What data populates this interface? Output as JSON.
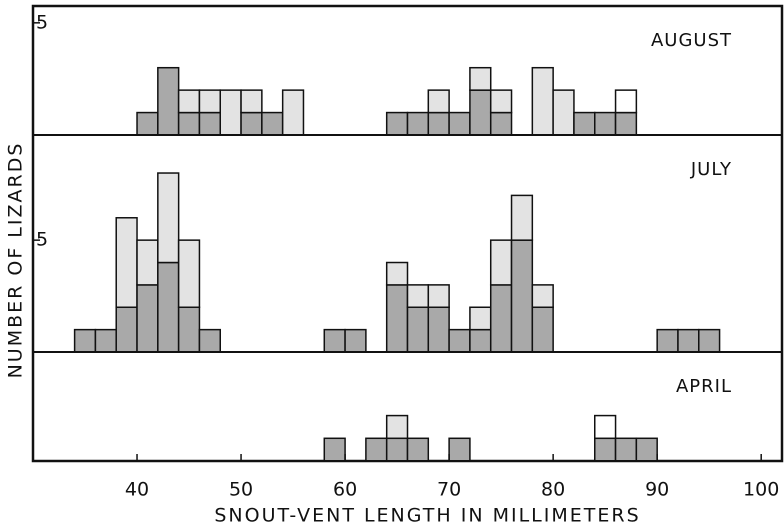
{
  "chart_data": [
    {
      "type": "histogram",
      "title": "AUGUST",
      "bins": [
        34,
        36,
        38,
        40,
        42,
        44,
        46,
        48,
        50,
        52,
        54,
        56,
        58,
        60,
        62,
        64,
        66,
        68,
        70,
        72,
        74,
        76,
        78,
        80,
        82,
        84,
        86,
        88,
        90,
        92,
        94,
        96,
        98
      ],
      "series": [
        {
          "color": "#a9a9a9",
          "values": [
            0,
            0,
            0,
            1,
            3,
            1,
            1,
            0,
            1,
            1,
            0,
            0,
            0,
            0,
            0,
            1,
            1,
            1,
            1,
            2,
            1,
            0,
            0,
            0,
            1,
            1,
            1,
            0,
            0,
            0,
            0,
            0
          ]
        },
        {
          "color": "#e3e3e3",
          "values": [
            0,
            0,
            0,
            0,
            0,
            1,
            1,
            2,
            1,
            0,
            2,
            0,
            0,
            0,
            0,
            0,
            0,
            1,
            0,
            1,
            1,
            0,
            3,
            2,
            0,
            0,
            0,
            0,
            0,
            0,
            0,
            0
          ]
        },
        {
          "color": "#ffffff",
          "values": [
            0,
            0,
            0,
            0,
            0,
            0,
            0,
            0,
            0,
            0,
            0,
            0,
            0,
            0,
            0,
            0,
            0,
            0,
            0,
            0,
            0,
            0,
            0,
            0,
            0,
            0,
            1,
            0,
            0,
            0,
            0,
            0
          ]
        }
      ],
      "xlim": [
        30,
        102
      ],
      "ylim": [
        0,
        5.75
      ],
      "yticks": [
        5
      ]
    },
    {
      "type": "histogram",
      "title": "JULY",
      "ylabel": "NUMBER OF LIZARDS",
      "bins": [
        34,
        36,
        38,
        40,
        42,
        44,
        46,
        48,
        50,
        52,
        54,
        56,
        58,
        60,
        62,
        64,
        66,
        68,
        70,
        72,
        74,
        76,
        78,
        80,
        82,
        84,
        86,
        88,
        90,
        92,
        94,
        96,
        98
      ],
      "series": [
        {
          "color": "#a9a9a9",
          "values": [
            1,
            1,
            2,
            3,
            4,
            2,
            1,
            0,
            0,
            0,
            0,
            0,
            1,
            1,
            0,
            3,
            2,
            2,
            1,
            1,
            3,
            5,
            2,
            0,
            0,
            0,
            0,
            0,
            1,
            1,
            1,
            0
          ]
        },
        {
          "color": "#e3e3e3",
          "values": [
            0,
            0,
            4,
            2,
            4,
            3,
            0,
            0,
            0,
            0,
            0,
            0,
            0,
            0,
            0,
            1,
            1,
            1,
            0,
            1,
            2,
            2,
            1,
            0,
            0,
            0,
            0,
            0,
            0,
            0,
            0,
            0
          ]
        }
      ],
      "xlim": [
        30,
        102
      ],
      "ylim": [
        0,
        9.7
      ],
      "yticks": [
        5
      ]
    },
    {
      "type": "histogram",
      "title": "APRIL",
      "xlabel": "SNOUT-VENT LENGTH IN MILLIMETERS",
      "bins": [
        34,
        36,
        38,
        40,
        42,
        44,
        46,
        48,
        50,
        52,
        54,
        56,
        58,
        60,
        62,
        64,
        66,
        68,
        70,
        72,
        74,
        76,
        78,
        80,
        82,
        84,
        86,
        88,
        90,
        92,
        94,
        96,
        98
      ],
      "series": [
        {
          "color": "#a9a9a9",
          "values": [
            0,
            0,
            0,
            0,
            0,
            0,
            0,
            0,
            0,
            0,
            0,
            0,
            1,
            0,
            1,
            1,
            1,
            0,
            1,
            0,
            0,
            0,
            0,
            0,
            0,
            1,
            1,
            1,
            0,
            0,
            0,
            0
          ]
        },
        {
          "color": "#e3e3e3",
          "values": [
            0,
            0,
            0,
            0,
            0,
            0,
            0,
            0,
            0,
            0,
            0,
            0,
            0,
            0,
            0,
            1,
            0,
            0,
            0,
            0,
            0,
            0,
            0,
            0,
            0,
            0,
            0,
            0,
            0,
            0,
            0,
            0
          ]
        },
        {
          "color": "#ffffff",
          "values": [
            0,
            0,
            0,
            0,
            0,
            0,
            0,
            0,
            0,
            0,
            0,
            0,
            0,
            0,
            0,
            0,
            0,
            0,
            0,
            0,
            0,
            0,
            0,
            0,
            0,
            1,
            0,
            0,
            0,
            0,
            0,
            0
          ]
        }
      ],
      "xlim": [
        30,
        102
      ],
      "ylim": [
        0,
        4.8
      ],
      "yticks": [],
      "xticks": [
        40,
        50,
        60,
        70,
        80,
        90,
        100
      ]
    }
  ]
}
